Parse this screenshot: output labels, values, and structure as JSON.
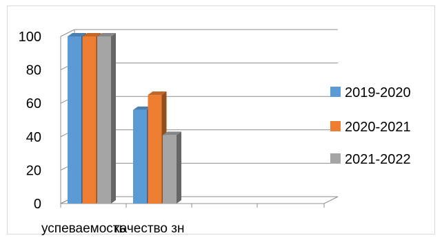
{
  "chart_data": {
    "type": "bar",
    "style": "3d-clustered-column",
    "categories": [
      "успеваемость",
      "качество зн"
    ],
    "series": [
      {
        "name": "2019-2020",
        "values": [
          100,
          56
        ],
        "color": "#5b9bd5"
      },
      {
        "name": "2020-2021",
        "values": [
          100,
          65
        ],
        "color": "#ed7d31"
      },
      {
        "name": "2021-2022",
        "values": [
          100,
          41
        ],
        "color": "#a5a5a5"
      }
    ],
    "y_ticks": [
      "0",
      "20",
      "40",
      "60",
      "80",
      "100"
    ],
    "ylim": [
      0,
      100
    ],
    "grid": true,
    "legend_position": "right",
    "title": "",
    "xlabel": "",
    "ylabel": ""
  }
}
